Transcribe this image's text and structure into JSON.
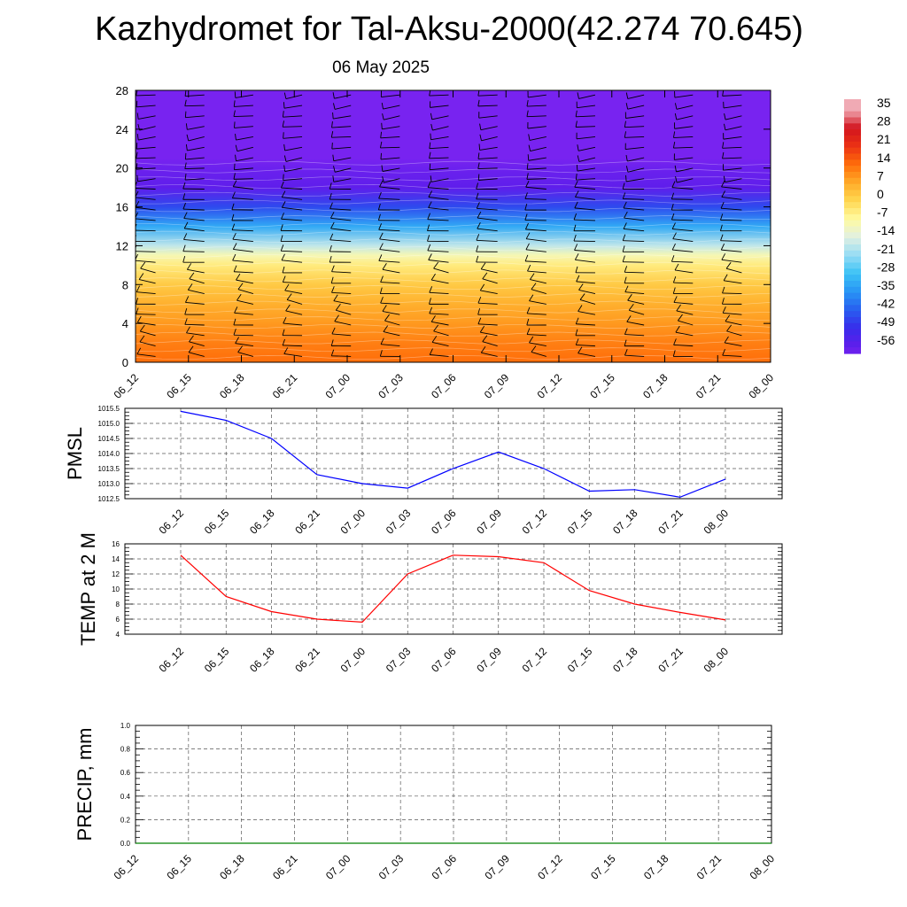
{
  "title": "Kazhydromet for Tal-Aksu-2000(42.274 70.645)",
  "subtitle": "06 May 2025",
  "chart_data": [
    {
      "type": "heatmap",
      "name": "cross-section",
      "x_labels": [
        "06_12",
        "06_15",
        "06_18",
        "06_21",
        "07_00",
        "07_03",
        "07_06",
        "07_09",
        "07_12",
        "07_15",
        "07_18",
        "07_21",
        "08_00"
      ],
      "yticks": [
        0,
        4,
        8,
        12,
        16,
        20,
        24,
        28
      ],
      "ylim": [
        0,
        28
      ],
      "colorbar_labels": [
        "35",
        "28",
        "21",
        "14",
        "7",
        "0",
        "-7",
        "-14",
        "-21",
        "-28",
        "-35",
        "-42",
        "-49",
        "-56"
      ],
      "temperature_profile": [
        {
          "y": 0,
          "t": 14
        },
        {
          "y": 2,
          "t": 12
        },
        {
          "y": 4,
          "t": 9
        },
        {
          "y": 6,
          "t": 6
        },
        {
          "y": 8,
          "t": 2
        },
        {
          "y": 10,
          "t": -4
        },
        {
          "y": 11,
          "t": -9
        },
        {
          "y": 12,
          "t": -17
        },
        {
          "y": 14,
          "t": -32
        },
        {
          "y": 16,
          "t": -45
        },
        {
          "y": 18,
          "t": -56
        },
        {
          "y": 20,
          "t": -58
        },
        {
          "y": 21,
          "t": -60
        },
        {
          "y": 28,
          "t": -60
        }
      ],
      "wind_barbs": "present"
    },
    {
      "type": "line",
      "ylabel": "PMSL",
      "x": [
        "06_12",
        "06_15",
        "06_18",
        "06_21",
        "07_00",
        "07_03",
        "07_06",
        "07_09",
        "07_12",
        "07_15",
        "07_18",
        "07_21",
        "08_00"
      ],
      "values": [
        1015.4,
        1015.1,
        1014.5,
        1013.3,
        1013.0,
        1012.85,
        1013.5,
        1014.05,
        1013.5,
        1012.75,
        1012.8,
        1012.55,
        1013.15
      ],
      "yticks": [
        "1012.5",
        "1013.0",
        "1013.5",
        "1014.0",
        "1014.5",
        "1015.0",
        "1015.5"
      ],
      "ylim": [
        1012.5,
        1015.5
      ],
      "color": "#0000ff",
      "grid": true
    },
    {
      "type": "line",
      "ylabel": "TEMP at 2 M",
      "x": [
        "06_12",
        "06_15",
        "06_18",
        "06_21",
        "07_00",
        "07_03",
        "07_06",
        "07_09",
        "07_12",
        "07_15",
        "07_18",
        "07_21",
        "08_00"
      ],
      "values": [
        14.5,
        9.0,
        7.0,
        6.0,
        5.6,
        12.0,
        14.5,
        14.3,
        13.5,
        9.8,
        8.0,
        6.9,
        5.9
      ],
      "yticks": [
        "4",
        "6",
        "8",
        "10",
        "12",
        "14",
        "16"
      ],
      "ylim": [
        4,
        16
      ],
      "color": "#ff0000",
      "grid": true
    },
    {
      "type": "line",
      "ylabel": "PRECIP, mm",
      "x": [
        "06_12",
        "06_15",
        "06_18",
        "06_21",
        "07_00",
        "07_03",
        "07_06",
        "07_09",
        "07_12",
        "07_15",
        "07_18",
        "07_21",
        "08_00"
      ],
      "values": [
        0,
        0,
        0,
        0,
        0,
        0,
        0,
        0,
        0,
        0,
        0,
        0,
        0
      ],
      "yticks": [
        "0.0",
        "0.2",
        "0.4",
        "0.6",
        "0.8",
        "1.0"
      ],
      "ylim": [
        0,
        1
      ],
      "color": "#008000",
      "grid": true
    }
  ]
}
